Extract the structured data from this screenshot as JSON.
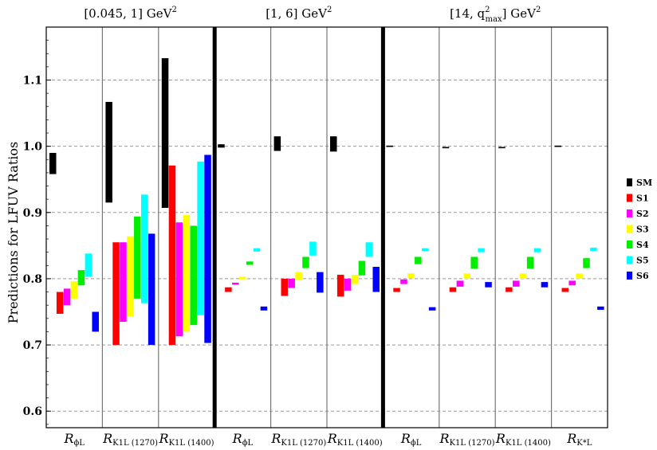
{
  "chart_data": {
    "type": "bar",
    "ylabel": "Predictions for LFUV Ratios",
    "ylim": [
      0.575,
      1.18
    ],
    "y_ticks": [
      0.6,
      0.7,
      0.8,
      0.9,
      1.0,
      1.1
    ],
    "y_tick_labels": [
      "0.6",
      "0.7",
      "0.8",
      "0.9",
      "1.0",
      "1.1"
    ],
    "grid": "horizontal dashed",
    "legend_position": "right",
    "series": [
      {
        "name": "SM",
        "color": "#000000"
      },
      {
        "name": "S1",
        "color": "#ff0000"
      },
      {
        "name": "S2",
        "color": "#ff00ff"
      },
      {
        "name": "S3",
        "color": "#ffff00"
      },
      {
        "name": "S4",
        "color": "#00ee00"
      },
      {
        "name": "S5",
        "color": "#00ffff"
      },
      {
        "name": "S6",
        "color": "#0000ff"
      }
    ],
    "groups": [
      {
        "title_pre": "[0.045, 1] GeV",
        "title_sup": "2",
        "panels": [
          {
            "label_main": "R",
            "label_sub": "ϕL",
            "ranges": [
              [
                0.958,
                0.99
              ],
              [
                0.747,
                0.78
              ],
              [
                0.76,
                0.785
              ],
              [
                0.77,
                0.796
              ],
              [
                0.79,
                0.813
              ],
              [
                0.803,
                0.838
              ],
              [
                0.72,
                0.75
              ]
            ]
          },
          {
            "label_main": "R",
            "label_sub": "K1L (1270)",
            "ranges": [
              [
                0.915,
                1.067
              ],
              [
                0.7,
                0.855
              ],
              [
                0.735,
                0.855
              ],
              [
                0.743,
                0.864
              ],
              [
                0.77,
                0.894
              ],
              [
                0.763,
                0.927
              ],
              [
                0.7,
                0.868
              ]
            ]
          },
          {
            "label_main": "R",
            "label_sub": "K1L (1400)",
            "ranges": [
              [
                0.907,
                1.133
              ],
              [
                0.7,
                0.971
              ],
              [
                0.713,
                0.885
              ],
              [
                0.72,
                0.896
              ],
              [
                0.73,
                0.88
              ],
              [
                0.745,
                0.977
              ],
              [
                0.703,
                0.987
              ]
            ]
          }
        ]
      },
      {
        "title_pre": "[1, 6] GeV",
        "title_sup": "2",
        "panels": [
          {
            "label_main": "R",
            "label_sub": "ϕL",
            "ranges": [
              [
                0.998,
                1.003
              ],
              [
                0.78,
                0.787
              ],
              [
                0.791,
                0.794
              ],
              [
                0.799,
                0.803
              ],
              [
                0.821,
                0.826
              ],
              [
                0.841,
                0.846
              ],
              [
                0.752,
                0.758
              ]
            ]
          },
          {
            "label_main": "R",
            "label_sub": "K1L (1270)",
            "ranges": [
              [
                0.993,
                1.015
              ],
              [
                0.774,
                0.8
              ],
              [
                0.786,
                0.8
              ],
              [
                0.798,
                0.81
              ],
              [
                0.816,
                0.833
              ],
              [
                0.835,
                0.856
              ],
              [
                0.779,
                0.81
              ]
            ]
          },
          {
            "label_main": "R",
            "label_sub": "K1L (1400)",
            "ranges": [
              [
                0.992,
                1.015
              ],
              [
                0.773,
                0.806
              ],
              [
                0.782,
                0.8
              ],
              [
                0.792,
                0.806
              ],
              [
                0.805,
                0.827
              ],
              [
                0.833,
                0.855
              ],
              [
                0.78,
                0.818
              ]
            ]
          }
        ]
      },
      {
        "title_pre": "[14, q",
        "title_sup": "2",
        "title_sub": "max",
        "title_post": "] GeV",
        "title_sup2": "2",
        "panels": [
          {
            "label_main": "R",
            "label_sub": "ϕL",
            "ranges": [
              [
                0.999,
                1.001
              ],
              [
                0.78,
                0.786
              ],
              [
                0.792,
                0.799
              ],
              [
                0.801,
                0.808
              ],
              [
                0.822,
                0.833
              ],
              [
                0.842,
                0.846
              ],
              [
                0.752,
                0.757
              ]
            ]
          },
          {
            "label_main": "R",
            "label_sub": "K1L (1270)",
            "ranges": [
              [
                0.997,
                0.999
              ],
              [
                0.78,
                0.787
              ],
              [
                0.788,
                0.797
              ],
              [
                0.8,
                0.808
              ],
              [
                0.815,
                0.833
              ],
              [
                0.84,
                0.846
              ],
              [
                0.787,
                0.795
              ]
            ]
          },
          {
            "label_main": "R",
            "label_sub": "K1L (1400)",
            "ranges": [
              [
                0.997,
                0.999
              ],
              [
                0.78,
                0.787
              ],
              [
                0.788,
                0.797
              ],
              [
                0.8,
                0.808
              ],
              [
                0.815,
                0.833
              ],
              [
                0.84,
                0.846
              ],
              [
                0.787,
                0.795
              ]
            ]
          },
          {
            "label_main": "R",
            "label_sub": "K*L",
            "ranges": [
              [
                0.999,
                1.001
              ],
              [
                0.78,
                0.786
              ],
              [
                0.79,
                0.797
              ],
              [
                0.8,
                0.808
              ],
              [
                0.816,
                0.831
              ],
              [
                0.842,
                0.847
              ],
              [
                0.753,
                0.758
              ]
            ]
          }
        ]
      }
    ]
  }
}
